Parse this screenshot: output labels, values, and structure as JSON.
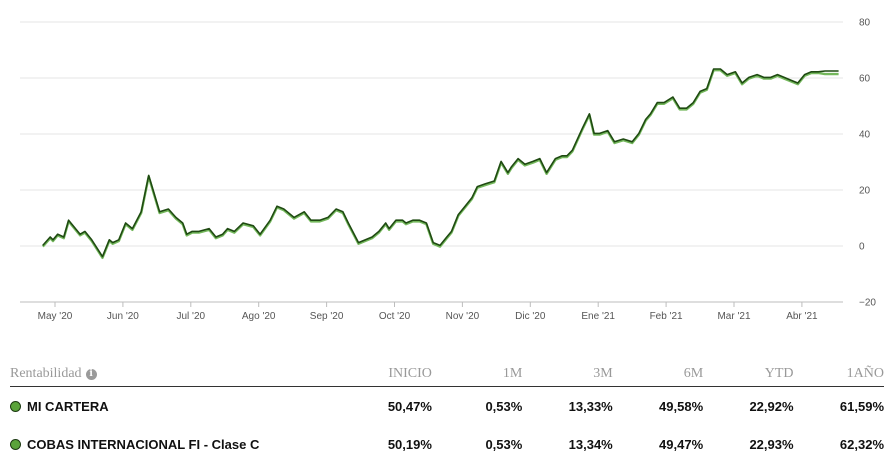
{
  "colors": {
    "line_dark": "#1f4a12",
    "line_light": "#74b85c",
    "dot_fill": "#5aa33a",
    "grid": "#e6e6e6"
  },
  "chart_data": {
    "type": "line",
    "title": "",
    "xlabel": "",
    "ylabel": "",
    "ylim": [
      -20,
      80
    ],
    "yticks": [
      80,
      60,
      40,
      20,
      0,
      -20
    ],
    "yticks_labels": [
      "80",
      "60",
      "40",
      "20",
      "0",
      "−20"
    ],
    "xticks": [
      "May '20",
      "Jun '20",
      "Jul '20",
      "Ago '20",
      "Sep '20",
      "Oct '20",
      "Nov '20",
      "Dic '20",
      "Ene '21",
      "Feb '21",
      "Mar '21",
      "Abr '21"
    ],
    "grid": "horizontal",
    "x_range": [
      0,
      11.79
    ],
    "series": [
      {
        "name": "MI CARTERA",
        "x": [
          0,
          0.11,
          0.15,
          0.22,
          0.31,
          0.38,
          0.55,
          0.62,
          0.72,
          0.88,
          0.98,
          1.03,
          1.12,
          1.22,
          1.32,
          1.45,
          1.56,
          1.72,
          1.85,
          1.96,
          2.06,
          2.12,
          2.2,
          2.3,
          2.45,
          2.55,
          2.65,
          2.72,
          2.82,
          2.95,
          3.1,
          3.2,
          3.35,
          3.45,
          3.55,
          3.7,
          3.85,
          3.95,
          4.08,
          4.2,
          4.32,
          4.42,
          4.5,
          4.65,
          4.85,
          4.95,
          5.05,
          5.1,
          5.2,
          5.3,
          5.35,
          5.45,
          5.55,
          5.65,
          5.75,
          5.85,
          5.95,
          6.02,
          6.12,
          6.22,
          6.32,
          6.4,
          6.52,
          6.65,
          6.75,
          6.85,
          6.9,
          7.0,
          7.1,
          7.22,
          7.32,
          7.42,
          7.55,
          7.65,
          7.72,
          7.8,
          7.95,
          8.05,
          8.12,
          8.2,
          8.32,
          8.42,
          8.55,
          8.68,
          8.78,
          8.88,
          8.95,
          9.05,
          9.15,
          9.28,
          9.38,
          9.48,
          9.58,
          9.68,
          9.78,
          9.88,
          9.98,
          10.08,
          10.2,
          10.3,
          10.4,
          10.52,
          10.62,
          10.72,
          10.82,
          10.92,
          11.02,
          11.12,
          11.22,
          11.32,
          11.42,
          11.52,
          11.62,
          11.72
        ],
        "y": [
          0,
          3,
          2,
          4,
          3,
          9,
          4,
          5,
          2,
          -4,
          2,
          1,
          2,
          8,
          6,
          12,
          25,
          12,
          13,
          10,
          8,
          4,
          5,
          5,
          6,
          3,
          4,
          6,
          5,
          8,
          7,
          4,
          9,
          14,
          13,
          10,
          12,
          9,
          9,
          10,
          13,
          12,
          8,
          1,
          3,
          5,
          8,
          6,
          9,
          9,
          8,
          9,
          9,
          8,
          1,
          0,
          3,
          5,
          11,
          14,
          17,
          21,
          22,
          23,
          30,
          26,
          28,
          31,
          29,
          30,
          31,
          26,
          31,
          32,
          32,
          34,
          42,
          47,
          40,
          40,
          41,
          37,
          38,
          37,
          40,
          45,
          47,
          51,
          51,
          53,
          49,
          49,
          51,
          55,
          56,
          63,
          63,
          61,
          62,
          58,
          60,
          61,
          60,
          60,
          61,
          60,
          59,
          58,
          61,
          62,
          62,
          61.6,
          61.6,
          61.6
        ]
      },
      {
        "name": "COBAS INTERNACIONAL FI - Clase C",
        "x": [
          0,
          0.11,
          0.15,
          0.22,
          0.31,
          0.38,
          0.55,
          0.62,
          0.72,
          0.88,
          0.98,
          1.03,
          1.12,
          1.22,
          1.32,
          1.45,
          1.56,
          1.72,
          1.85,
          1.96,
          2.06,
          2.12,
          2.2,
          2.3,
          2.45,
          2.55,
          2.65,
          2.72,
          2.82,
          2.95,
          3.1,
          3.2,
          3.35,
          3.45,
          3.55,
          3.7,
          3.85,
          3.95,
          4.08,
          4.2,
          4.32,
          4.42,
          4.5,
          4.65,
          4.85,
          4.95,
          5.05,
          5.1,
          5.2,
          5.3,
          5.35,
          5.45,
          5.55,
          5.65,
          5.75,
          5.85,
          5.95,
          6.02,
          6.12,
          6.22,
          6.32,
          6.4,
          6.52,
          6.65,
          6.75,
          6.85,
          6.9,
          7.0,
          7.1,
          7.22,
          7.32,
          7.42,
          7.55,
          7.65,
          7.72,
          7.8,
          7.95,
          8.05,
          8.12,
          8.2,
          8.32,
          8.42,
          8.55,
          8.68,
          8.78,
          8.88,
          8.95,
          9.05,
          9.15,
          9.28,
          9.38,
          9.48,
          9.58,
          9.68,
          9.78,
          9.88,
          9.98,
          10.08,
          10.2,
          10.3,
          10.4,
          10.52,
          10.62,
          10.72,
          10.82,
          10.92,
          11.02,
          11.12,
          11.22,
          11.32,
          11.42,
          11.52,
          11.62,
          11.72
        ],
        "y": [
          0,
          3,
          2,
          4,
          3,
          9,
          4,
          5,
          2,
          -4,
          2,
          1,
          2,
          8,
          6,
          12,
          25,
          12,
          13,
          10,
          8,
          4,
          5,
          5,
          6,
          3,
          4,
          6,
          5,
          8,
          7,
          4,
          9,
          14,
          13,
          10,
          12,
          9,
          9,
          10,
          13,
          12,
          8,
          1,
          3,
          5,
          8,
          6,
          9,
          9,
          8,
          9,
          9,
          8,
          1,
          0,
          3,
          5,
          11,
          14,
          17,
          21,
          22,
          23,
          30,
          26,
          28,
          31,
          29,
          30,
          31,
          26,
          31,
          32,
          32,
          34,
          42,
          47,
          40,
          40,
          41,
          37,
          38,
          37,
          40,
          45,
          47,
          51,
          51,
          53,
          49,
          49,
          51,
          55,
          56,
          63,
          63,
          61,
          62,
          58,
          60,
          61,
          60,
          60,
          61,
          60,
          59,
          58,
          61,
          62,
          62,
          62.3,
          62.3,
          62.3
        ]
      }
    ]
  },
  "table": {
    "header_label": "Rentabilidad",
    "info_icon": "i",
    "columns": [
      "INICIO",
      "1M",
      "3M",
      "6M",
      "YTD",
      "1AÑO"
    ],
    "rows": [
      {
        "name": "MI CARTERA",
        "values": [
          "50,47%",
          "0,53%",
          "13,33%",
          "49,58%",
          "22,92%",
          "61,59%"
        ]
      },
      {
        "name": "COBAS INTERNACIONAL FI - Clase C",
        "values": [
          "50,19%",
          "0,53%",
          "13,34%",
          "49,47%",
          "22,93%",
          "62,32%"
        ]
      }
    ]
  }
}
